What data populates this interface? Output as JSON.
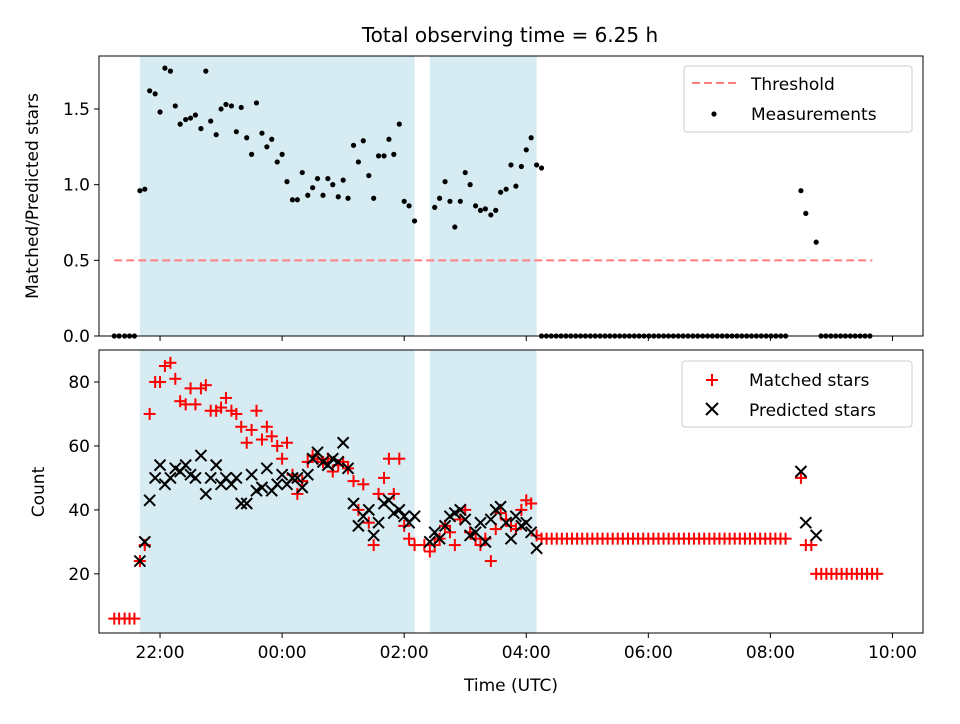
{
  "figure_title": "Total observing time = 6.25 h",
  "chart_data": [
    {
      "type": "scatter",
      "panel": "top",
      "ylabel": "Matched/Predicted stars",
      "xlabel": "",
      "xlim": [
        21.0,
        10.5
      ],
      "x_wraps_midnight": true,
      "ylim": [
        0.0,
        1.85
      ],
      "yticks": [
        0.0,
        0.5,
        1.0,
        1.5
      ],
      "ytick_labels": [
        "0.0",
        "0.5",
        "1.0",
        "1.5"
      ],
      "legend_position": "top-right",
      "grid": false,
      "shaded_intervals": [
        [
          21.67,
          2.17
        ],
        [
          2.42,
          4.17
        ]
      ],
      "series": [
        {
          "name": "Threshold",
          "kind": "dashed-line",
          "color": "#ff7f7f",
          "x": [
            21.25,
            9.67
          ],
          "y": [
            0.5,
            0.5
          ]
        },
        {
          "name": "Measurements",
          "kind": "dots",
          "color": "#000000",
          "points": [
            [
              21.25,
              0.0
            ],
            [
              21.33,
              0.0
            ],
            [
              21.42,
              0.0
            ],
            [
              21.5,
              0.0
            ],
            [
              21.58,
              0.0
            ],
            [
              21.67,
              0.96
            ],
            [
              21.75,
              0.97
            ],
            [
              21.83,
              1.62
            ],
            [
              21.92,
              1.6
            ],
            [
              22.0,
              1.48
            ],
            [
              22.08,
              1.77
            ],
            [
              22.17,
              1.75
            ],
            [
              22.25,
              1.52
            ],
            [
              22.33,
              1.4
            ],
            [
              22.42,
              1.43
            ],
            [
              22.5,
              1.44
            ],
            [
              22.58,
              1.46
            ],
            [
              22.67,
              1.37
            ],
            [
              22.75,
              1.75
            ],
            [
              22.83,
              1.42
            ],
            [
              22.92,
              1.33
            ],
            [
              23.0,
              1.5
            ],
            [
              23.08,
              1.53
            ],
            [
              23.17,
              1.52
            ],
            [
              23.25,
              1.35
            ],
            [
              23.33,
              1.51
            ],
            [
              23.42,
              1.31
            ],
            [
              23.5,
              1.2
            ],
            [
              23.58,
              1.54
            ],
            [
              23.67,
              1.34
            ],
            [
              23.75,
              1.25
            ],
            [
              23.83,
              1.3
            ],
            [
              23.92,
              1.15
            ],
            [
              24.0,
              1.2
            ],
            [
              24.08,
              1.02
            ],
            [
              24.17,
              0.9
            ],
            [
              24.25,
              0.9
            ],
            [
              24.33,
              1.08
            ],
            [
              24.42,
              0.93
            ],
            [
              24.5,
              0.98
            ],
            [
              24.58,
              1.04
            ],
            [
              24.67,
              0.93
            ],
            [
              24.75,
              1.04
            ],
            [
              24.83,
              1.0
            ],
            [
              24.92,
              0.92
            ],
            [
              25.0,
              1.03
            ],
            [
              25.08,
              0.91
            ],
            [
              25.17,
              1.26
            ],
            [
              25.25,
              1.15
            ],
            [
              25.33,
              1.29
            ],
            [
              25.42,
              1.06
            ],
            [
              25.5,
              0.91
            ],
            [
              25.58,
              1.19
            ],
            [
              25.67,
              1.19
            ],
            [
              25.75,
              1.3
            ],
            [
              25.83,
              1.2
            ],
            [
              25.92,
              1.4
            ],
            [
              26.0,
              0.89
            ],
            [
              26.08,
              0.86
            ],
            [
              26.17,
              0.76
            ],
            [
              26.5,
              0.85
            ],
            [
              26.58,
              0.91
            ],
            [
              26.67,
              1.02
            ],
            [
              26.75,
              0.89
            ],
            [
              26.83,
              0.72
            ],
            [
              26.92,
              0.89
            ],
            [
              27.0,
              1.08
            ],
            [
              27.08,
              1.0
            ],
            [
              27.17,
              0.86
            ],
            [
              27.25,
              0.83
            ],
            [
              27.33,
              0.84
            ],
            [
              27.42,
              0.8
            ],
            [
              27.5,
              0.83
            ],
            [
              27.58,
              0.95
            ],
            [
              27.67,
              0.97
            ],
            [
              27.75,
              1.13
            ],
            [
              27.83,
              0.99
            ],
            [
              27.92,
              1.12
            ],
            [
              28.0,
              1.23
            ],
            [
              28.08,
              1.31
            ],
            [
              28.17,
              1.13
            ],
            [
              28.25,
              1.11
            ],
            [
              32.5,
              0.96
            ],
            [
              32.58,
              0.81
            ],
            [
              32.75,
              0.62
            ]
          ],
          "zero_runs": [
            [
              28.25,
              32.25,
              0.08
            ],
            [
              32.83,
              33.67,
              0.08
            ]
          ]
        }
      ]
    },
    {
      "type": "scatter",
      "panel": "bottom",
      "ylabel": "Count",
      "xlabel": "Time (UTC)",
      "xlim": [
        21.0,
        10.5
      ],
      "x_wraps_midnight": true,
      "xticks": [
        "22:00",
        "00:00",
        "02:00",
        "04:00",
        "06:00",
        "08:00",
        "10:00"
      ],
      "ylim": [
        1.5,
        90.0
      ],
      "yticks": [
        20,
        40,
        60,
        80
      ],
      "ytick_labels": [
        "20",
        "40",
        "60",
        "80"
      ],
      "legend_position": "top-right",
      "grid": false,
      "shaded_intervals": [
        [
          21.67,
          2.17
        ],
        [
          2.42,
          4.17
        ]
      ],
      "series": [
        {
          "name": "Matched stars",
          "marker": "+",
          "color": "#ff0000",
          "points": [
            [
              21.25,
              6
            ],
            [
              21.33,
              6
            ],
            [
              21.42,
              6
            ],
            [
              21.5,
              6
            ],
            [
              21.58,
              6
            ],
            [
              21.67,
              24
            ],
            [
              21.75,
              29
            ],
            [
              21.83,
              70
            ],
            [
              21.92,
              80
            ],
            [
              22.0,
              80
            ],
            [
              22.08,
              85
            ],
            [
              22.17,
              86
            ],
            [
              22.25,
              81
            ],
            [
              22.33,
              74
            ],
            [
              22.42,
              73
            ],
            [
              22.5,
              78
            ],
            [
              22.58,
              73
            ],
            [
              22.67,
              78
            ],
            [
              22.75,
              79
            ],
            [
              22.83,
              71
            ],
            [
              22.92,
              71
            ],
            [
              23.0,
              72
            ],
            [
              23.08,
              75
            ],
            [
              23.17,
              71
            ],
            [
              23.25,
              70
            ],
            [
              23.33,
              66
            ],
            [
              23.42,
              61
            ],
            [
              23.5,
              65
            ],
            [
              23.58,
              71
            ],
            [
              23.67,
              62
            ],
            [
              23.75,
              66
            ],
            [
              23.83,
              63
            ],
            [
              23.92,
              60
            ],
            [
              24.0,
              56
            ],
            [
              24.08,
              61
            ],
            [
              24.17,
              51
            ],
            [
              24.25,
              45
            ],
            [
              24.33,
              49
            ],
            [
              24.42,
              55
            ],
            [
              24.5,
              57
            ],
            [
              24.58,
              56
            ],
            [
              24.67,
              55
            ],
            [
              24.75,
              56
            ],
            [
              24.83,
              52
            ],
            [
              24.92,
              54
            ],
            [
              25.0,
              55
            ],
            [
              25.08,
              53
            ],
            [
              25.17,
              49
            ],
            [
              25.25,
              40
            ],
            [
              25.33,
              48
            ],
            [
              25.42,
              36
            ],
            [
              25.5,
              29
            ],
            [
              25.58,
              45
            ],
            [
              25.67,
              50
            ],
            [
              25.75,
              56
            ],
            [
              25.83,
              45
            ],
            [
              25.92,
              56
            ],
            [
              26.0,
              35
            ],
            [
              26.08,
              31
            ],
            [
              26.17,
              29
            ],
            [
              26.33,
              29
            ],
            [
              26.42,
              27
            ],
            [
              26.5,
              29
            ],
            [
              26.58,
              31
            ],
            [
              26.67,
              35
            ],
            [
              26.75,
              33
            ],
            [
              26.83,
              29
            ],
            [
              26.92,
              37
            ],
            [
              27.0,
              40
            ],
            [
              27.08,
              33
            ],
            [
              27.17,
              31
            ],
            [
              27.25,
              29
            ],
            [
              27.33,
              31
            ],
            [
              27.42,
              24
            ],
            [
              27.5,
              34
            ],
            [
              27.58,
              39
            ],
            [
              27.67,
              37
            ],
            [
              27.75,
              35
            ],
            [
              27.83,
              34
            ],
            [
              27.92,
              40
            ],
            [
              28.0,
              43
            ],
            [
              28.08,
              42
            ],
            [
              28.17,
              32
            ],
            [
              28.25,
              31
            ],
            [
              32.5,
              50
            ],
            [
              32.58,
              29
            ],
            [
              32.67,
              29
            ]
          ],
          "constant_runs": [
            [
              28.25,
              32.25,
              0.0833,
              31
            ],
            [
              32.75,
              33.75,
              0.0833,
              20
            ]
          ]
        },
        {
          "name": "Predicted stars",
          "marker": "x",
          "color": "#000000",
          "points": [
            [
              21.67,
              24
            ],
            [
              21.75,
              30
            ],
            [
              21.83,
              43
            ],
            [
              21.92,
              50
            ],
            [
              22.0,
              54
            ],
            [
              22.08,
              48
            ],
            [
              22.17,
              50
            ],
            [
              22.25,
              53
            ],
            [
              22.33,
              52
            ],
            [
              22.42,
              54
            ],
            [
              22.5,
              51
            ],
            [
              22.58,
              50
            ],
            [
              22.67,
              57
            ],
            [
              22.75,
              45
            ],
            [
              22.83,
              50
            ],
            [
              22.92,
              54
            ],
            [
              23.0,
              48
            ],
            [
              23.08,
              50
            ],
            [
              23.17,
              48
            ],
            [
              23.25,
              50
            ],
            [
              23.33,
              42
            ],
            [
              23.42,
              42
            ],
            [
              23.5,
              51
            ],
            [
              23.58,
              46
            ],
            [
              23.67,
              47
            ],
            [
              23.75,
              53
            ],
            [
              23.83,
              46
            ],
            [
              23.92,
              48
            ],
            [
              24.0,
              51
            ],
            [
              24.08,
              48
            ],
            [
              24.17,
              50
            ],
            [
              24.25,
              50
            ],
            [
              24.33,
              47
            ],
            [
              24.42,
              51
            ],
            [
              24.5,
              56
            ],
            [
              24.58,
              58
            ],
            [
              24.67,
              55
            ],
            [
              24.75,
              54
            ],
            [
              24.83,
              56
            ],
            [
              24.92,
              55
            ],
            [
              25.0,
              61
            ],
            [
              25.08,
              53
            ],
            [
              25.17,
              42
            ],
            [
              25.25,
              35
            ],
            [
              25.33,
              38
            ],
            [
              25.42,
              40
            ],
            [
              25.5,
              32
            ],
            [
              25.58,
              36
            ],
            [
              25.67,
              42
            ],
            [
              25.75,
              43
            ],
            [
              25.83,
              39
            ],
            [
              25.92,
              40
            ],
            [
              26.0,
              38
            ],
            [
              26.08,
              36
            ],
            [
              26.17,
              38
            ],
            [
              26.42,
              30
            ],
            [
              26.5,
              33
            ],
            [
              26.58,
              31
            ],
            [
              26.67,
              35
            ],
            [
              26.75,
              38
            ],
            [
              26.83,
              39
            ],
            [
              26.92,
              40
            ],
            [
              27.0,
              37
            ],
            [
              27.08,
              32
            ],
            [
              27.17,
              33
            ],
            [
              27.25,
              36
            ],
            [
              27.33,
              30
            ],
            [
              27.42,
              37
            ],
            [
              27.5,
              40
            ],
            [
              27.58,
              41
            ],
            [
              27.67,
              36
            ],
            [
              27.75,
              31
            ],
            [
              27.83,
              38
            ],
            [
              27.92,
              35
            ],
            [
              28.0,
              36
            ],
            [
              28.08,
              33
            ],
            [
              28.17,
              28
            ],
            [
              32.5,
              52
            ],
            [
              32.58,
              36
            ],
            [
              32.75,
              32
            ]
          ]
        }
      ]
    }
  ]
}
